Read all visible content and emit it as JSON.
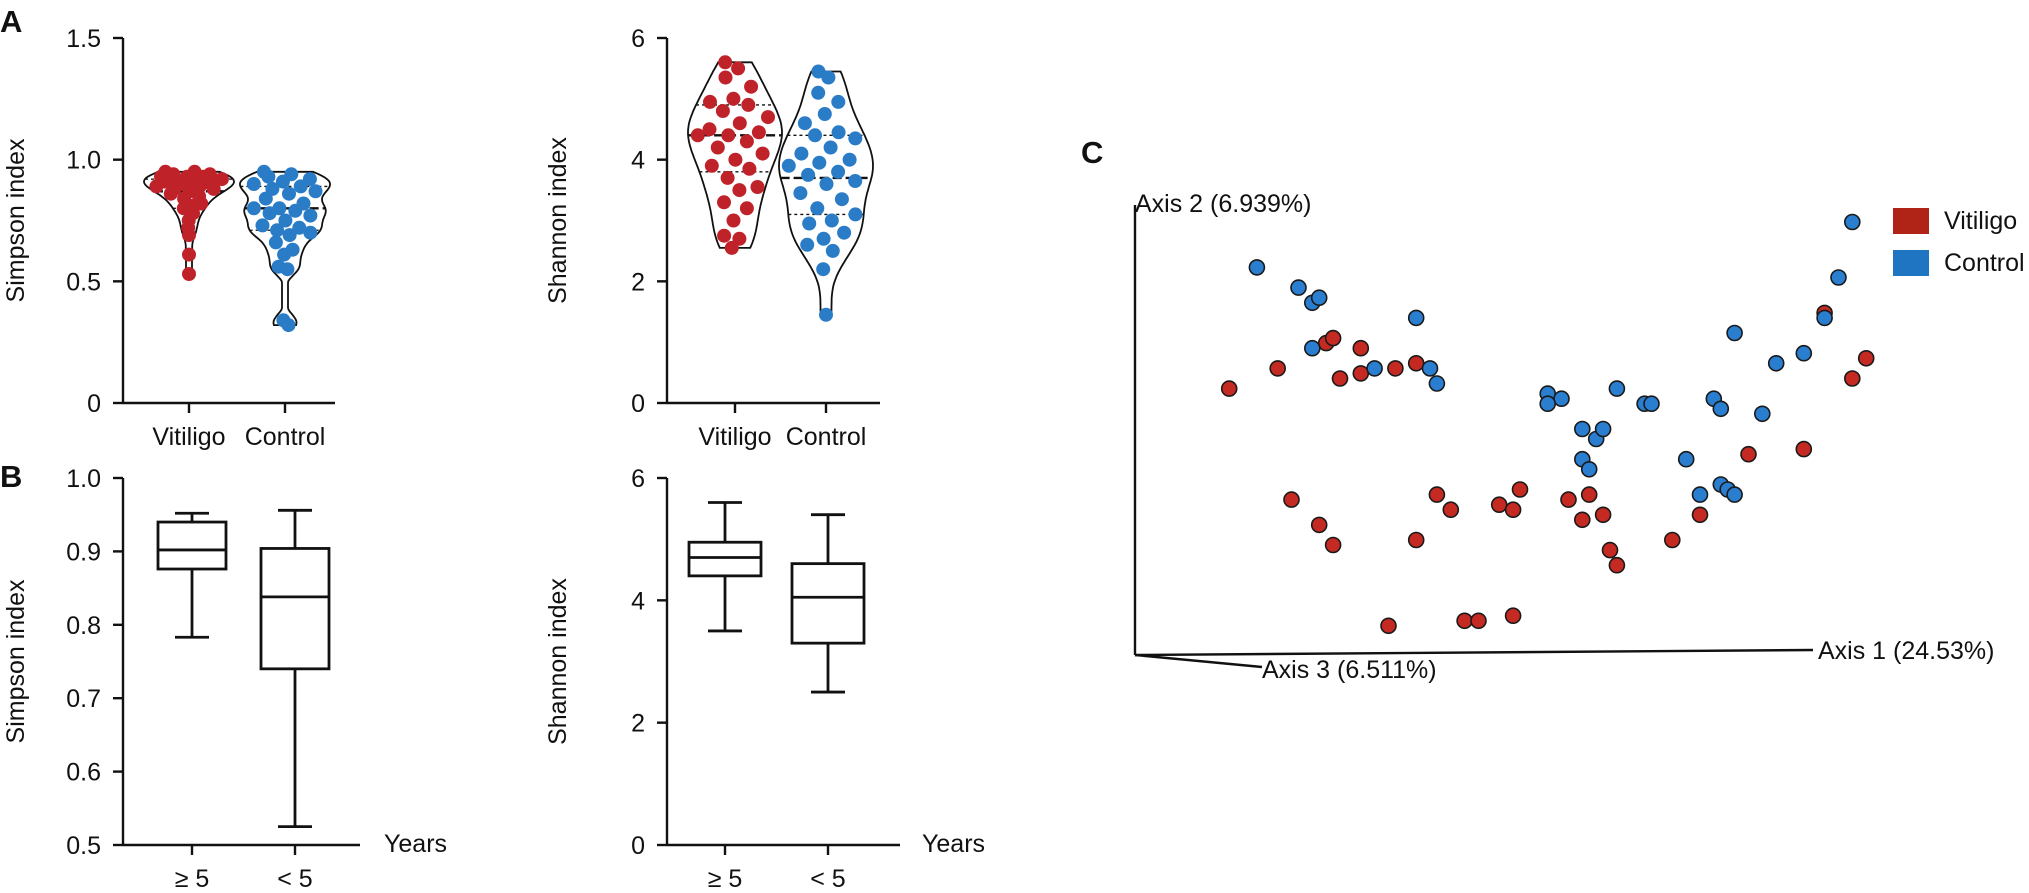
{
  "panels": {
    "a": "A",
    "b": "B",
    "c": "C"
  },
  "chart_data": [
    {
      "id": "A1",
      "type": "violin",
      "title": "",
      "xlabel": "",
      "ylabel": "Simpson index",
      "yticks": [
        "0",
        "0.5",
        "1.0",
        "1.5"
      ],
      "ylim": [
        0,
        1.5
      ],
      "categories": [
        "Vitiligo",
        "Control"
      ],
      "series": [
        {
          "name": "Vitiligo",
          "color": "#c0222a",
          "quartiles": [
            0.8,
            0.87,
            0.92
          ],
          "values": [
            0.95,
            0.95,
            0.94,
            0.94,
            0.93,
            0.93,
            0.93,
            0.92,
            0.92,
            0.91,
            0.91,
            0.9,
            0.9,
            0.89,
            0.89,
            0.88,
            0.88,
            0.87,
            0.86,
            0.85,
            0.84,
            0.82,
            0.81,
            0.8,
            0.78,
            0.75,
            0.72,
            0.69,
            0.61,
            0.53
          ]
        },
        {
          "name": "Control",
          "color": "#2a7cc7",
          "quartiles": [
            0.71,
            0.8,
            0.89
          ],
          "values": [
            0.95,
            0.94,
            0.93,
            0.92,
            0.91,
            0.9,
            0.89,
            0.88,
            0.87,
            0.86,
            0.84,
            0.82,
            0.8,
            0.8,
            0.79,
            0.78,
            0.77,
            0.75,
            0.73,
            0.72,
            0.71,
            0.7,
            0.69,
            0.66,
            0.63,
            0.61,
            0.56,
            0.55,
            0.34,
            0.32
          ]
        }
      ]
    },
    {
      "id": "A2",
      "type": "violin",
      "title": "",
      "xlabel": "",
      "ylabel": "Shannon index",
      "yticks": [
        "0",
        "2",
        "4",
        "6"
      ],
      "ylim": [
        0,
        6
      ],
      "categories": [
        "Vitiligo",
        "Control"
      ],
      "series": [
        {
          "name": "Vitiligo",
          "color": "#c0222a",
          "quartiles": [
            3.8,
            4.4,
            4.9
          ],
          "values": [
            5.6,
            5.5,
            5.35,
            5.2,
            5.0,
            4.95,
            4.9,
            4.8,
            4.7,
            4.6,
            4.5,
            4.45,
            4.4,
            4.4,
            4.3,
            4.2,
            4.1,
            4.0,
            3.9,
            3.85,
            3.7,
            3.55,
            3.5,
            3.3,
            3.2,
            3.0,
            2.75,
            2.7,
            2.55
          ]
        },
        {
          "name": "Control",
          "color": "#2a7cc7",
          "quartiles": [
            3.1,
            3.7,
            4.4
          ],
          "values": [
            5.45,
            5.35,
            5.1,
            4.95,
            4.75,
            4.6,
            4.45,
            4.4,
            4.35,
            4.2,
            4.1,
            4.0,
            3.95,
            3.9,
            3.8,
            3.75,
            3.65,
            3.6,
            3.45,
            3.35,
            3.2,
            3.1,
            3.0,
            2.95,
            2.8,
            2.7,
            2.6,
            2.5,
            2.2,
            1.45
          ]
        }
      ]
    },
    {
      "id": "B1",
      "type": "box",
      "title": "",
      "xlabel": "Years",
      "ylabel": "Simpson index",
      "yticks": [
        "0.5",
        "0.6",
        "0.7",
        "0.8",
        "0.9",
        "1.0"
      ],
      "ylim": [
        0.5,
        1.0
      ],
      "categories": [
        "≥ 5",
        "< 5"
      ],
      "boxes": [
        {
          "name": "≥ 5",
          "min": 0.783,
          "q1": 0.876,
          "median": 0.902,
          "q3": 0.94,
          "max": 0.952
        },
        {
          "name": "< 5",
          "min": 0.525,
          "q1": 0.74,
          "median": 0.838,
          "q3": 0.904,
          "max": 0.956
        }
      ]
    },
    {
      "id": "B2",
      "type": "box",
      "title": "",
      "xlabel": "Years",
      "ylabel": "Shannon index",
      "yticks": [
        "0",
        "2",
        "4",
        "6"
      ],
      "ylim": [
        0,
        6
      ],
      "categories": [
        "≥ 5",
        "< 5"
      ],
      "boxes": [
        {
          "name": "≥ 5",
          "min": 3.5,
          "q1": 4.4,
          "median": 4.7,
          "q3": 4.95,
          "max": 5.6
        },
        {
          "name": "< 5",
          "min": 2.5,
          "q1": 3.3,
          "median": 4.05,
          "q3": 4.6,
          "max": 5.4
        }
      ]
    },
    {
      "id": "C",
      "type": "scatter",
      "title": "",
      "axis_labels": {
        "axis1": "Axis 1 (24.53%)",
        "axis2": "Axis 2 (6.939%)",
        "axis3": "Axis 3 (6.511%)"
      },
      "note": "3D PCoA projection; x/y are normalized projected coordinates (0-1) within the drawn axis frame",
      "legend": {
        "position": "top-right",
        "entries": [
          {
            "name": "Vitiligo",
            "color": "#b02418"
          },
          {
            "name": "Control",
            "color": "#1f75c2"
          }
        ]
      },
      "series": [
        {
          "name": "Vitiligo",
          "color": "#c52a22",
          "points": [
            [
              0.1,
              0.51
            ],
            [
              0.17,
              0.55
            ],
            [
              0.24,
              0.6
            ],
            [
              0.25,
              0.61
            ],
            [
              0.26,
              0.53
            ],
            [
              0.29,
              0.54
            ],
            [
              0.29,
              0.59
            ],
            [
              0.34,
              0.55
            ],
            [
              0.37,
              0.56
            ],
            [
              0.19,
              0.29
            ],
            [
              0.23,
              0.24
            ],
            [
              0.25,
              0.2
            ],
            [
              0.4,
              0.3
            ],
            [
              0.42,
              0.27
            ],
            [
              0.49,
              0.28
            ],
            [
              0.51,
              0.27
            ],
            [
              0.52,
              0.31
            ],
            [
              0.33,
              0.04
            ],
            [
              0.44,
              0.05
            ],
            [
              0.51,
              0.06
            ],
            [
              0.59,
              0.29
            ],
            [
              0.61,
              0.25
            ],
            [
              0.62,
              0.3
            ],
            [
              0.64,
              0.26
            ],
            [
              0.65,
              0.19
            ],
            [
              0.66,
              0.16
            ],
            [
              0.74,
              0.21
            ],
            [
              0.78,
              0.26
            ],
            [
              0.85,
              0.38
            ],
            [
              0.93,
              0.39
            ],
            [
              0.96,
              0.66
            ],
            [
              1.0,
              0.53
            ],
            [
              1.02,
              0.57
            ],
            [
              0.37,
              0.21
            ],
            [
              0.46,
              0.05
            ]
          ]
        },
        {
          "name": "Control",
          "color": "#2a7ed0",
          "points": [
            [
              0.14,
              0.75
            ],
            [
              0.2,
              0.71
            ],
            [
              0.22,
              0.68
            ],
            [
              0.23,
              0.69
            ],
            [
              0.22,
              0.59
            ],
            [
              0.31,
              0.55
            ],
            [
              0.39,
              0.55
            ],
            [
              0.4,
              0.52
            ],
            [
              0.37,
              0.65
            ],
            [
              0.56,
              0.5
            ],
            [
              0.58,
              0.49
            ],
            [
              0.61,
              0.43
            ],
            [
              0.63,
              0.41
            ],
            [
              0.64,
              0.43
            ],
            [
              0.66,
              0.51
            ],
            [
              0.7,
              0.48
            ],
            [
              0.71,
              0.48
            ],
            [
              0.61,
              0.37
            ],
            [
              0.62,
              0.35
            ],
            [
              0.76,
              0.37
            ],
            [
              0.78,
              0.3
            ],
            [
              0.81,
              0.32
            ],
            [
              0.82,
              0.31
            ],
            [
              0.83,
              0.3
            ],
            [
              0.8,
              0.49
            ],
            [
              0.81,
              0.47
            ],
            [
              0.87,
              0.46
            ],
            [
              0.89,
              0.56
            ],
            [
              0.93,
              0.58
            ],
            [
              0.96,
              0.65
            ],
            [
              0.98,
              0.73
            ],
            [
              1.0,
              0.84
            ],
            [
              0.83,
              0.62
            ],
            [
              0.56,
              0.48
            ]
          ]
        }
      ]
    }
  ]
}
